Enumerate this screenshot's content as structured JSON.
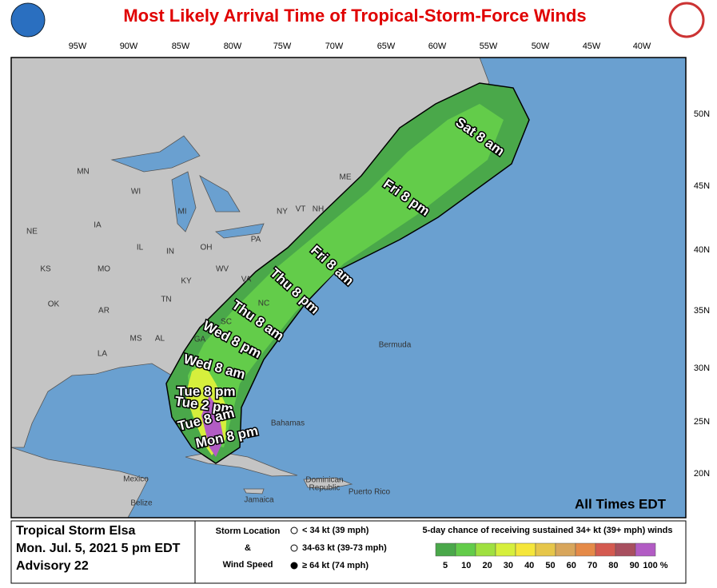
{
  "header": {
    "title": "Most Likely Arrival Time of Tropical-Storm-Force Winds"
  },
  "map": {
    "longitude_labels": [
      "95W",
      "90W",
      "85W",
      "80W",
      "75W",
      "70W",
      "65W",
      "60W",
      "55W",
      "50W",
      "45W",
      "40W"
    ],
    "latitude_labels": [
      "50N",
      "45N",
      "40N",
      "35N",
      "30N",
      "25N",
      "20N"
    ],
    "place_labels": [
      "MN",
      "WI",
      "MI",
      "IA",
      "NE",
      "IL",
      "IN",
      "OH",
      "PA",
      "NY",
      "ME",
      "VT",
      "NH",
      "KS",
      "MO",
      "KY",
      "WV",
      "VA",
      "TN",
      "OK",
      "AR",
      "NC",
      "MS",
      "AL",
      "SC",
      "GA",
      "LA",
      "Bermuda",
      "Bahamas",
      "Mexico",
      "Belize",
      "Jamaica",
      "Dominican",
      "Republic",
      "Puerto Rico"
    ],
    "time_labels": [
      "Sat 8 am",
      "Fri 8 pm",
      "Fri 8 am",
      "Thu 8 pm",
      "Thu 8 am",
      "Wed 8 pm",
      "Wed 8 am",
      "Tue 8 pm",
      "Tue 2 pm",
      "Tue 8 am",
      "Mon 8 pm"
    ],
    "note": "All Times EDT"
  },
  "info": {
    "lines": [
      "Tropical Storm Elsa",
      "Mon. Jul. 5, 2021  5 pm EDT",
      "Advisory 22"
    ]
  },
  "legend": {
    "storm_heading": [
      "Storm Location",
      "&",
      "Wind Speed"
    ],
    "symbols": [
      "< 34 kt (39 mph)",
      "34-63 kt (39-73 mph)",
      "≥ 64 kt (74 mph)"
    ],
    "scale_title": "5-day chance of receiving sustained 34+ kt (39+ mph) winds",
    "scale": {
      "labels": [
        "5",
        "10",
        "20",
        "30",
        "40",
        "50",
        "60",
        "70",
        "80",
        "90",
        "100 %"
      ],
      "colors": [
        "#4aa84a",
        "#63cc4a",
        "#9fe040",
        "#d6ef3c",
        "#f5e63a",
        "#e6c64a",
        "#d8a65c",
        "#e58a48",
        "#d45a50",
        "#a84f5f",
        "#b25cc4"
      ]
    }
  }
}
